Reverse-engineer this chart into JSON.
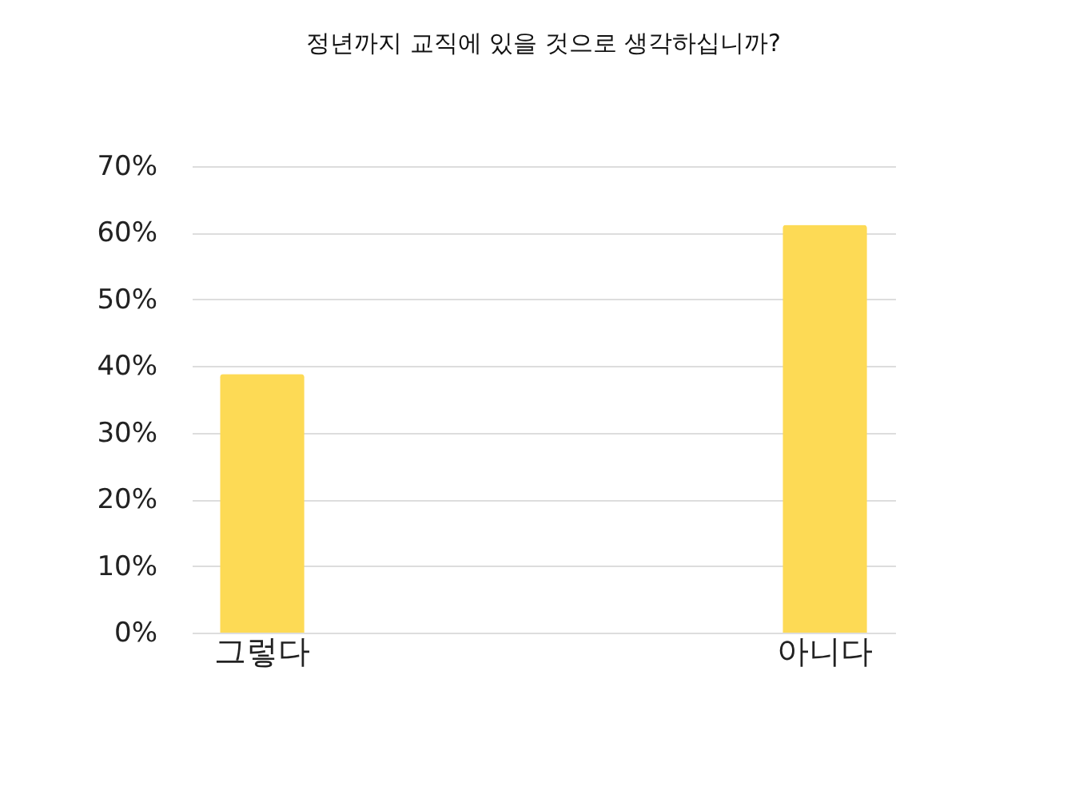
{
  "chart_data": {
    "type": "bar",
    "title": "정년까지 교직에 있을 것으로 생각하십니까?",
    "categories": [
      "그렇다",
      "아니다"
    ],
    "values": [
      38.8,
      61.2
    ],
    "color": "#fdda55",
    "ylim": [
      0,
      70
    ],
    "yticks": [
      {
        "value": 0,
        "label": "0%"
      },
      {
        "value": 10,
        "label": "10%"
      },
      {
        "value": 20,
        "label": "20%"
      },
      {
        "value": 30,
        "label": "30%"
      },
      {
        "value": 40,
        "label": "40%"
      },
      {
        "value": 50,
        "label": "50%"
      },
      {
        "value": 60,
        "label": "60%"
      },
      {
        "value": 70,
        "label": "70%"
      }
    ],
    "grid": "y"
  }
}
